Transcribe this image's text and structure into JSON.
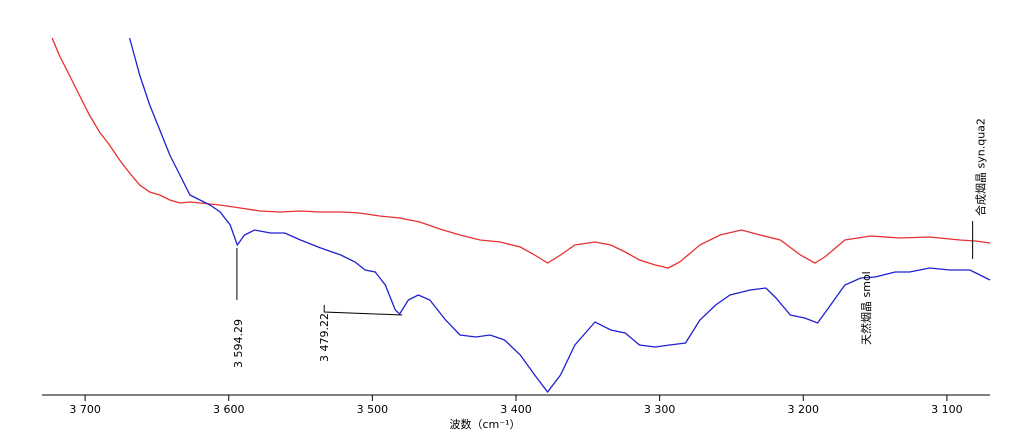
{
  "chart_data": {
    "type": "line",
    "x_label": "波数（cm⁻¹）",
    "xlim": [
      3730,
      3070
    ],
    "ylim": [
      0,
      365
    ],
    "xticks": [
      {
        "value": 3700,
        "label": "3 700"
      },
      {
        "value": 3600,
        "label": "3 600"
      },
      {
        "value": 3500,
        "label": "3 500"
      },
      {
        "value": 3400,
        "label": "3 400"
      },
      {
        "value": 3300,
        "label": "3 300"
      },
      {
        "value": 3200,
        "label": "3 200"
      },
      {
        "value": 3100,
        "label": "3 100"
      }
    ],
    "series": [
      {
        "name": "合成烟晶 syn.qua2",
        "color": "#e83030",
        "x": [
          3723,
          3718,
          3711,
          3704,
          3697,
          3690,
          3683,
          3676,
          3669,
          3662,
          3655,
          3648,
          3641,
          3634,
          3627,
          3620,
          3606,
          3592,
          3578,
          3564,
          3550,
          3536,
          3522,
          3509,
          3495,
          3481,
          3467,
          3453,
          3439,
          3425,
          3411,
          3397,
          3387,
          3378,
          3369,
          3359,
          3345,
          3334,
          3324,
          3314,
          3303,
          3294,
          3286,
          3272,
          3258,
          3243,
          3230,
          3216,
          3202,
          3192,
          3185,
          3171,
          3153,
          3133,
          3112,
          3091,
          3080,
          3070
        ],
        "values": [
          357,
          340,
          320,
          300,
          280,
          263,
          250,
          235,
          222,
          210,
          203,
          200,
          195,
          192,
          193,
          192,
          190,
          187,
          184,
          183,
          184,
          183,
          183,
          182,
          179,
          177,
          173,
          166,
          160,
          155,
          153,
          148,
          140,
          132,
          140,
          150,
          153,
          150,
          143,
          135,
          130,
          127,
          133,
          150,
          160,
          165,
          160,
          155,
          140,
          132,
          138,
          155,
          159,
          157,
          158,
          155,
          154,
          152
        ]
      },
      {
        "name": "天然烟晶 smol",
        "color": "#2020d0",
        "x": [
          3669,
          3662,
          3655,
          3648,
          3641,
          3634,
          3627,
          3620,
          3613,
          3606,
          3599,
          3594,
          3589,
          3582,
          3571,
          3561,
          3550,
          3536,
          3522,
          3512,
          3505,
          3498,
          3491,
          3484,
          3481,
          3475,
          3468,
          3460,
          3449,
          3439,
          3428,
          3418,
          3408,
          3397,
          3387,
          3378,
          3369,
          3359,
          3345,
          3334,
          3324,
          3314,
          3303,
          3293,
          3282,
          3272,
          3261,
          3251,
          3237,
          3226,
          3219,
          3209,
          3199,
          3190,
          3181,
          3171,
          3160,
          3150,
          3136,
          3126,
          3112,
          3098,
          3084,
          3070
        ],
        "values": [
          357,
          320,
          290,
          265,
          240,
          220,
          200,
          195,
          190,
          183,
          170,
          150,
          160,
          165,
          162,
          162,
          155,
          147,
          140,
          133,
          125,
          123,
          110,
          85,
          81,
          95,
          100,
          95,
          75,
          60,
          58,
          60,
          55,
          40,
          20,
          3,
          20,
          50,
          73,
          65,
          62,
          50,
          48,
          50,
          52,
          75,
          90,
          100,
          105,
          107,
          97,
          80,
          77,
          72,
          90,
          110,
          117,
          118,
          123,
          123,
          127,
          125,
          125,
          115
        ]
      }
    ],
    "annotations": [
      {
        "label": "3 594.29",
        "x": 3594.29
      },
      {
        "label": "3 479.22",
        "x": 3479.22
      }
    ]
  }
}
